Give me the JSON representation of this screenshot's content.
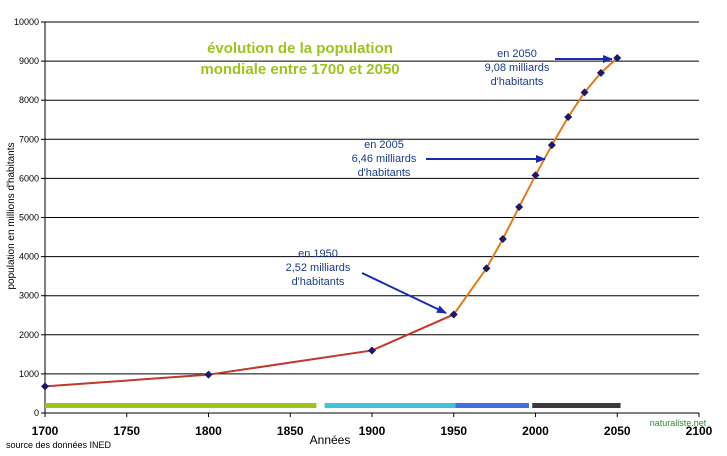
{
  "chart_data": {
    "type": "line",
    "title_lines": [
      "évolution de la population",
      "mondiale entre 1700 et 2050"
    ],
    "xlabel": "Années",
    "ylabel": "population en millions d'habitants",
    "xlim": [
      1700,
      2100
    ],
    "ylim": [
      0,
      10000
    ],
    "x_ticks": [
      1700,
      1750,
      1800,
      1850,
      1900,
      1950,
      2000,
      2050,
      2100
    ],
    "y_ticks": [
      0,
      1000,
      2000,
      3000,
      4000,
      5000,
      6000,
      7000,
      8000,
      9000,
      10000
    ],
    "grid": "horizontal",
    "source_note": "source des données INED",
    "watermark": "naturaliste.net",
    "series": [
      {
        "color": "#c0392b",
        "x": [
          1700,
          1800,
          1900,
          1950
        ],
        "y": [
          680,
          980,
          1600,
          2520
        ]
      },
      {
        "color": "#e07b1a",
        "x": [
          1950,
          1970,
          1980,
          1990,
          2000,
          2010,
          2020,
          2030,
          2040,
          2050
        ],
        "y": [
          2520,
          3700,
          4450,
          5270,
          6080,
          6850,
          7570,
          8200,
          8700,
          9080
        ]
      }
    ],
    "points": {
      "x": [
        1700,
        1800,
        1900,
        1950,
        1970,
        1980,
        1990,
        2000,
        2010,
        2020,
        2030,
        2040,
        2050
      ],
      "y": [
        680,
        980,
        1600,
        2520,
        3700,
        4450,
        5270,
        6080,
        6850,
        7570,
        8200,
        8700,
        9080
      ],
      "color": "#1a1a66"
    },
    "period_bars": [
      {
        "from": 1700,
        "to": 1866,
        "color": "#9dc31c"
      },
      {
        "from": 1871,
        "to": 1951,
        "color": "#3fc4d9"
      },
      {
        "from": 1951,
        "to": 1996,
        "color": "#3f6fdc"
      },
      {
        "from": 1998,
        "to": 2052,
        "color": "#3a3a3a"
      }
    ],
    "annotations": [
      {
        "lines": [
          "en 1950",
          "2,52 milliards",
          "d'habitants"
        ],
        "point": [
          1950,
          2520
        ]
      },
      {
        "lines": [
          "en 2005",
          "6,46 milliards",
          "d'habitants"
        ],
        "point": [
          2003,
          6460
        ]
      },
      {
        "lines": [
          "en 2050",
          "9,08 milliards",
          "d'habitants"
        ],
        "point": [
          2048,
          9080
        ]
      }
    ],
    "colors": {
      "title": "#9dc31c",
      "annotation_text": "#1a3a8a",
      "arrow": "#1a2ab0",
      "axis": "#000000"
    }
  }
}
